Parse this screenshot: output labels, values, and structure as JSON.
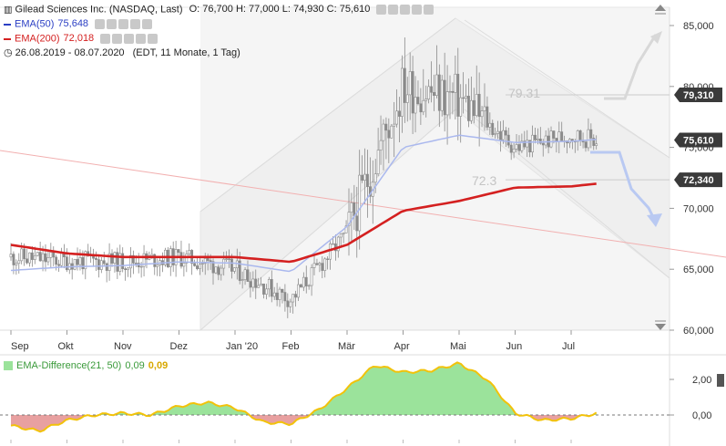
{
  "header": {
    "instrument": "Gilead Sciences Inc. (NASDAQ, Last)",
    "ohlc": "O: 76,700  H: 77,000  L: 74,930  C: 75,610",
    "range": "26.08.2019 - 08.07.2020",
    "range_detail": "(EDT, 11 Monate, 1 Tag)"
  },
  "colors": {
    "ema50": "#aab8ee",
    "ema200": "#d42020",
    "candle": "#8a8a8a",
    "channel": "#e4e4e4",
    "diff_fill": "#9be39b",
    "diff_neg": "#e8a0a0",
    "diff_line": "#f2c20a",
    "forecast": "#b9c9f2",
    "price_box": "#3a3a3a"
  },
  "legend": {
    "ema50_label": "EMA(50)",
    "ema50_value": "75,648",
    "ema200_label": "EMA(200)",
    "ema200_value": "72,018"
  },
  "lower_legend": {
    "label": "EMA-Difference(21, 50)",
    "value1": "0,09",
    "value2": "0,09"
  },
  "annotations": {
    "resistance": "79.31",
    "support": "72.3"
  },
  "price_tags": [
    {
      "label": "79,310",
      "value": 79.31
    },
    {
      "label": "75,610",
      "value": 75.61
    },
    {
      "label": "72,340",
      "value": 72.34
    }
  ],
  "chart_data": [
    {
      "type": "candlestick",
      "title": "Gilead Sciences Inc. (NASDAQ, Last)",
      "x_tick_labels": [
        "Sep",
        "Okt",
        "Nov",
        "Dez",
        "Jan '20",
        "Feb",
        "Mär",
        "Apr",
        "Mai",
        "Jun",
        "Jul"
      ],
      "y_tick_labels": [
        "85,000",
        "80,000",
        "75,000",
        "70,000",
        "65,000",
        "60,000"
      ],
      "y_ticks": [
        85,
        80,
        75,
        70,
        65,
        60
      ],
      "ylim": [
        59.6,
        86.7
      ],
      "grid": false,
      "legend_position": "top-left",
      "x_months": [
        0,
        1,
        2,
        3,
        4,
        5,
        6,
        7,
        8,
        9,
        10,
        10.45
      ],
      "close": [
        66.0,
        65.7,
        65.6,
        66.0,
        65.0,
        62.5,
        68.0,
        80.0,
        79.0,
        75.0,
        76.0,
        75.6
      ],
      "series": [
        {
          "name": "EMA(50)",
          "x": [
            0,
            1,
            2,
            3,
            4,
            5,
            6,
            7,
            8,
            9,
            10,
            10.45
          ],
          "values": [
            64.9,
            65.2,
            65.3,
            65.6,
            65.5,
            64.8,
            68.5,
            75.0,
            76.0,
            75.4,
            75.5,
            75.65
          ]
        },
        {
          "name": "EMA(200)",
          "x": [
            0,
            1,
            2,
            3,
            4,
            5,
            6,
            7,
            8,
            9,
            10,
            10.45
          ],
          "values": [
            67.0,
            66.3,
            66.0,
            66.0,
            66.0,
            65.6,
            67.0,
            69.8,
            70.6,
            71.7,
            71.8,
            72.02
          ]
        }
      ]
    },
    {
      "type": "area",
      "title": "EMA-Difference(21, 50)",
      "y_tick_labels": [
        "2,00",
        "0,00"
      ],
      "y_ticks": [
        2,
        0
      ],
      "ylim": [
        -1.1,
        3.4
      ],
      "x": [
        0,
        0.5,
        1,
        1.5,
        2,
        2.5,
        3,
        3.5,
        4,
        4.5,
        5,
        5.5,
        6,
        6.5,
        7,
        7.5,
        8,
        8.5,
        9,
        9.5,
        10,
        10.45
      ],
      "values": [
        -0.6,
        -0.9,
        -0.3,
        0.0,
        0.1,
        0.0,
        0.5,
        0.7,
        0.4,
        -0.4,
        -0.5,
        0.3,
        1.5,
        2.8,
        2.4,
        2.5,
        2.9,
        2.0,
        0.1,
        -0.3,
        -0.2,
        0.09
      ]
    }
  ]
}
